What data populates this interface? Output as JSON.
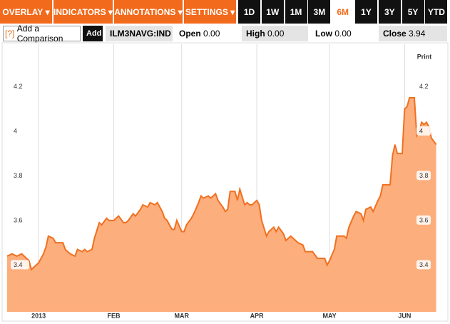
{
  "toolbar": {
    "menus": [
      "OVERLAY",
      "INDICATORS",
      "ANNOTATIONS",
      "SETTINGS"
    ],
    "ranges": [
      "1D",
      "1W",
      "1M",
      "3M",
      "6M",
      "1Y",
      "3Y",
      "5Y",
      "YTD"
    ],
    "selected": "6M"
  },
  "quote_bar": {
    "help": "[?]",
    "comparison": "Add a Comparison",
    "add": "Add",
    "symbol": "ILM3NAVG:IND",
    "fields": [
      {
        "label": "Open",
        "value": "0.00"
      },
      {
        "label": "High",
        "value": "0.00"
      },
      {
        "label": "Low",
        "value": "0.00"
      },
      {
        "label": "Close",
        "value": "3.94"
      }
    ]
  },
  "print": "Print",
  "chart_data": {
    "type": "area",
    "color": "#f07020",
    "fill": "#fcae7c",
    "x": [
      -13,
      -11,
      -9,
      -7,
      -6,
      -4,
      -3,
      -1,
      0,
      2,
      3,
      4,
      6,
      7,
      8,
      10,
      11,
      13,
      15,
      16,
      18,
      19,
      20,
      22,
      23,
      25,
      26,
      28,
      29,
      30,
      31,
      33,
      35,
      36,
      37,
      39,
      40,
      42,
      43,
      45,
      46,
      48,
      49,
      51,
      52,
      53,
      55,
      56,
      57,
      59,
      60,
      61,
      63,
      64,
      66,
      67,
      68,
      70,
      71,
      73,
      74,
      76,
      77,
      78,
      79,
      81,
      82,
      83,
      85,
      86,
      87,
      88,
      90,
      91,
      92,
      94,
      95,
      97,
      98,
      99,
      101,
      102,
      103,
      104,
      106,
      107,
      109,
      110,
      112,
      113,
      115,
      116,
      118,
      119,
      120,
      122,
      123,
      124,
      126,
      127,
      128,
      130,
      131,
      133,
      134,
      135,
      137,
      138,
      140,
      141,
      142,
      143,
      145,
      146,
      147,
      148,
      150,
      151,
      152,
      153,
      155,
      156,
      157,
      158,
      159,
      160,
      161,
      162,
      164
    ],
    "values": [
      3.44,
      3.45,
      3.44,
      3.45,
      3.44,
      3.42,
      3.38,
      3.4,
      3.41,
      3.45,
      3.48,
      3.53,
      3.52,
      3.5,
      3.5,
      3.5,
      3.47,
      3.45,
      3.44,
      3.47,
      3.46,
      3.47,
      3.46,
      3.47,
      3.52,
      3.59,
      3.58,
      3.61,
      3.6,
      3.6,
      3.6,
      3.62,
      3.59,
      3.59,
      3.6,
      3.63,
      3.62,
      3.65,
      3.67,
      3.66,
      3.68,
      3.67,
      3.68,
      3.64,
      3.61,
      3.6,
      3.56,
      3.56,
      3.6,
      3.55,
      3.55,
      3.58,
      3.61,
      3.63,
      3.68,
      3.71,
      3.7,
      3.71,
      3.7,
      3.72,
      3.69,
      3.66,
      3.64,
      3.65,
      3.73,
      3.73,
      3.69,
      3.74,
      3.67,
      3.68,
      3.67,
      3.67,
      3.69,
      3.67,
      3.6,
      3.53,
      3.55,
      3.57,
      3.55,
      3.57,
      3.54,
      3.51,
      3.52,
      3.53,
      3.51,
      3.5,
      3.49,
      3.46,
      3.46,
      3.46,
      3.43,
      3.43,
      3.43,
      3.4,
      3.42,
      3.47,
      3.53,
      3.53,
      3.53,
      3.52,
      3.57,
      3.62,
      3.64,
      3.63,
      3.6,
      3.65,
      3.66,
      3.64,
      3.69,
      3.71,
      3.76,
      3.76,
      3.76,
      3.89,
      3.94,
      3.9,
      3.9,
      4.1,
      4.11,
      4.15,
      4.15,
      3.98,
      4.0,
      4.04,
      4.03,
      4.04,
      4.02,
      3.97,
      3.94
    ],
    "xlim": [
      -13,
      165
    ],
    "xticks": [
      {
        "value": 0,
        "label": "2013"
      },
      {
        "value": 31,
        "label": "FEB"
      },
      {
        "value": 59,
        "label": "MAR"
      },
      {
        "value": 90,
        "label": "APR"
      },
      {
        "value": 120,
        "label": "MAY"
      },
      {
        "value": 151,
        "label": "JUN"
      }
    ],
    "ylim": [
      3.19,
      4.39
    ],
    "yticks": [
      3.4,
      3.6,
      3.8,
      4,
      4.2
    ],
    "grid": "x"
  }
}
